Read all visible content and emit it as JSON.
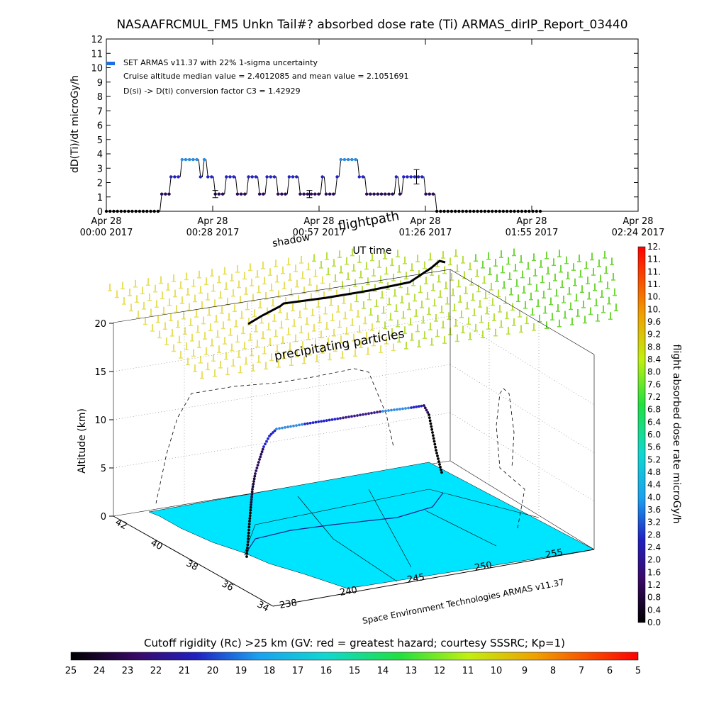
{
  "title": "NASAAFRCMUL_FM5 Unkn Tail#? absorbed dose rate (Ti) ARMAS_dirIP_Report_03440",
  "top_panel": {
    "ylabel": "dD(Ti)/dt microGy/h",
    "xlabel": "UT time",
    "legend": [
      "SET ARMAS v11.37 with 22% 1-sigma uncertainty",
      "Cruise altitude median value = 2.4012085 and mean value = 2.1051691",
      "D(si) -> D(ti) conversion factor C3 = 1.42929"
    ],
    "x_ticks": [
      {
        "line1": "Apr 28",
        "line2": "00:00 2017"
      },
      {
        "line1": "Apr 28",
        "line2": "00:28 2017"
      },
      {
        "line1": "Apr 28",
        "line2": "00:57 2017"
      },
      {
        "line1": "Apr 28",
        "line2": "01:26 2017"
      },
      {
        "line1": "Apr 28",
        "line2": "01:55 2017"
      },
      {
        "line1": "Apr 28",
        "line2": "02:24 2017"
      }
    ],
    "y_ticks": [
      "0",
      "1",
      "2",
      "3",
      "4",
      "5",
      "6",
      "7",
      "8",
      "9",
      "10",
      "11",
      "12"
    ]
  },
  "chart_data": [
    {
      "type": "line",
      "title": "NASAAFRCMUL_FM5 Unkn Tail#? absorbed dose rate (Ti) ARMAS_dirIP_Report_03440",
      "xlabel": "UT time",
      "ylabel": "dD(Ti)/dt microGy/h",
      "x_unit": "minutes after Apr 28 2017 00:00 UT",
      "xlim": [
        0,
        144
      ],
      "ylim": [
        0,
        12
      ],
      "grid": false,
      "legend_position": "top-left",
      "series": [
        {
          "name": "SET ARMAS v11.37 with 22% 1-sigma uncertainty",
          "points": [
            [
              0,
              0
            ],
            [
              14.5,
              0
            ],
            [
              15,
              1.2
            ],
            [
              17,
              1.2
            ],
            [
              17.5,
              2.4
            ],
            [
              20,
              2.4
            ],
            [
              20.5,
              3.6
            ],
            [
              25,
              3.6
            ],
            [
              25.5,
              2.4
            ],
            [
              26,
              2.4
            ],
            [
              26.5,
              3.6
            ],
            [
              27,
              3.6
            ],
            [
              27.5,
              2.4
            ],
            [
              29,
              2.4
            ],
            [
              29.5,
              1.2
            ],
            [
              32,
              1.2
            ],
            [
              32.5,
              2.4
            ],
            [
              35,
              2.4
            ],
            [
              35.5,
              1.2
            ],
            [
              38,
              1.2
            ],
            [
              38.5,
              2.4
            ],
            [
              41,
              2.4
            ],
            [
              41.5,
              1.2
            ],
            [
              43,
              1.2
            ],
            [
              43.5,
              2.4
            ],
            [
              46,
              2.4
            ],
            [
              46.5,
              1.2
            ],
            [
              49,
              1.2
            ],
            [
              49.5,
              2.4
            ],
            [
              52,
              2.4
            ],
            [
              52.5,
              1.2
            ],
            [
              58,
              1.2
            ],
            [
              58.5,
              2.4
            ],
            [
              59,
              2.4
            ],
            [
              59.5,
              1.2
            ],
            [
              62,
              1.2
            ],
            [
              62.5,
              2.4
            ],
            [
              63,
              2.4
            ],
            [
              63.5,
              3.6
            ],
            [
              68,
              3.6
            ],
            [
              68.5,
              2.4
            ],
            [
              70,
              2.4
            ],
            [
              70.5,
              1.2
            ],
            [
              78,
              1.2
            ],
            [
              78.5,
              2.4
            ],
            [
              79,
              2.4
            ],
            [
              79.5,
              1.2
            ],
            [
              80,
              1.2
            ],
            [
              80.5,
              2.4
            ],
            [
              86,
              2.4
            ],
            [
              86.5,
              1.2
            ],
            [
              89,
              1.2
            ],
            [
              89.5,
              0
            ],
            [
              118,
              0
            ]
          ]
        }
      ],
      "error_bars": [
        {
          "x": 29.5,
          "y": 1.2,
          "low": 0.95,
          "high": 1.45
        },
        {
          "x": 55,
          "y": 1.2,
          "low": 0.95,
          "high": 1.45
        },
        {
          "x": 84,
          "y": 2.4,
          "low": 1.9,
          "high": 2.9
        }
      ]
    },
    {
      "type": "3d-flightpath",
      "zlabel": "Altitude (km)",
      "z_ticks": [
        0,
        5,
        10,
        15,
        20
      ],
      "lat_ticks": [
        34,
        36,
        38,
        40,
        42
      ],
      "lon_ticks": [
        238,
        240,
        245,
        250,
        255
      ],
      "annotations": [
        "shadow",
        "flightpath",
        "precipitating particles",
        "Space Environment Technologies ARMAS v11.37"
      ],
      "dose_colorbar_label": "flight absorbed dose rate microGy/h",
      "dose_colorbar_ticks": [
        "0.0",
        "0.4",
        "0.8",
        "1.2",
        "1.6",
        "2.0",
        "2.4",
        "2.8",
        "3.2",
        "3.6",
        "4.0",
        "4.4",
        "4.8",
        "5.2",
        "5.6",
        "6.0",
        "6.4",
        "6.8",
        "7.2",
        "7.6",
        "8.0",
        "8.4",
        "8.8",
        "9.2",
        "9.6",
        "10.",
        "10.",
        "11.",
        "11.",
        "11.",
        "12."
      ],
      "rc_colorbar_label": "Cutoff rigidity (Rc) >25 km (GV: red = greatest hazard; courtesy SSSRC; Kp=1)",
      "rc_colorbar_ticks": [
        "25",
        "24",
        "23",
        "22",
        "21",
        "20",
        "19",
        "18",
        "17",
        "16",
        "15",
        "14",
        "13",
        "12",
        "11",
        "10",
        "9",
        "8",
        "7",
        "6",
        "5"
      ],
      "flightpath_dose_microGy_h": [
        0.4,
        1.2,
        2.4,
        3.6,
        2.4,
        1.2,
        0.4
      ],
      "ground_rigidity_GV": 17
    }
  ],
  "labels": {
    "flightpath": "flightpath",
    "shadow": "shadow",
    "precipitating": "precipitating particles",
    "credit": "Space Environment Technologies ARMAS v11.37",
    "altitude": "Altitude (km)",
    "dose_bar": "flight absorbed dose rate microGy/h",
    "rc_bar": "Cutoff rigidity (Rc) >25 km (GV: red = greatest hazard; courtesy SSSRC; Kp=1)",
    "z_ticks": [
      "0",
      "5",
      "10",
      "15",
      "20"
    ],
    "lat_ticks": [
      "42",
      "40",
      "38",
      "36",
      "34"
    ],
    "lon_ticks": [
      "238",
      "240",
      "245",
      "250",
      "255"
    ]
  },
  "colors": {
    "series_low": "#2a0a5a",
    "series_mid": "#2222cc",
    "series_high": "#2f8ce0",
    "ground": "#00e0ff",
    "precip": "#a8e020"
  }
}
